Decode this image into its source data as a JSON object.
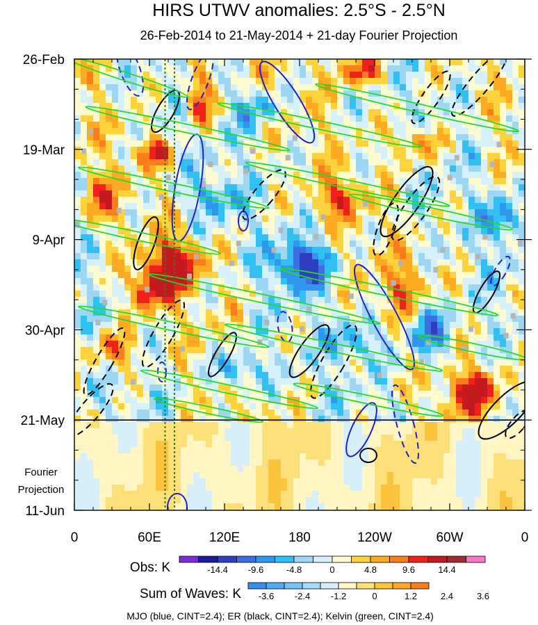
{
  "chart_data": {
    "type": "heatmap",
    "title": "HIRS UTWV anomalies: 2.5°S - 2.5°N",
    "subtitle": "26-Feb-2014 to 21-May-2014 + 21-day Fourier Projection",
    "x_ticks": [
      "0",
      "60E",
      "120E",
      "180",
      "120W",
      "60W",
      "0"
    ],
    "x_values": [
      0,
      60,
      120,
      180,
      240,
      300,
      360
    ],
    "x_range": [
      0,
      360
    ],
    "y_ticks": [
      "26-Feb",
      "19-Mar",
      "9-Apr",
      "30-Apr",
      "21-May",
      "11-Jun"
    ],
    "y_days": [
      0,
      21,
      42,
      63,
      84,
      105
    ],
    "y_range_days": [
      0,
      105
    ],
    "projection_label": [
      "Fourier",
      "Projection"
    ],
    "projection_start_day": 84,
    "reference_longitudes": [
      72.5,
      80
    ],
    "obs_colorbar": {
      "label": "Obs: K",
      "tick_labels": [
        "-14.4",
        "-9.6",
        "-4.8",
        "0",
        "4.8",
        "9.6",
        "14.4"
      ],
      "colors": [
        "#7a2cdd",
        "#1c1c9c",
        "#2d3fbf",
        "#3d6fe0",
        "#2f97ee",
        "#30c1f2",
        "#9ed7f3",
        "#d6f1fb",
        "#fffbd0",
        "#fcd33d",
        "#fdab22",
        "#fb7d1b",
        "#f2201a",
        "#c21a1e",
        "#9e2c2e",
        "#f774c6"
      ]
    },
    "waves_colorbar": {
      "label": "Sum of Waves: K",
      "tick_labels": [
        "-3.6",
        "-2.4",
        "-1.2",
        "0",
        "1.2",
        "2.4",
        "3.6"
      ],
      "colors": [
        "#3a8ee8",
        "#52a9ef",
        "#74c4f4",
        "#a6daf6",
        "#d7effb",
        "#fff6c4",
        "#fde07a",
        "#fcc33c",
        "#fca52c",
        "#f97f1d"
      ]
    },
    "contours": {
      "mjo": {
        "color": "#1f1fd0"
      },
      "er": {
        "color": "#000000"
      },
      "kelvin": {
        "color": "#22dd22"
      }
    },
    "footer": "MJO (blue, CINT=2.4); ER (black, CINT=2.4); Kelvin (green, CINT=2.4)"
  }
}
